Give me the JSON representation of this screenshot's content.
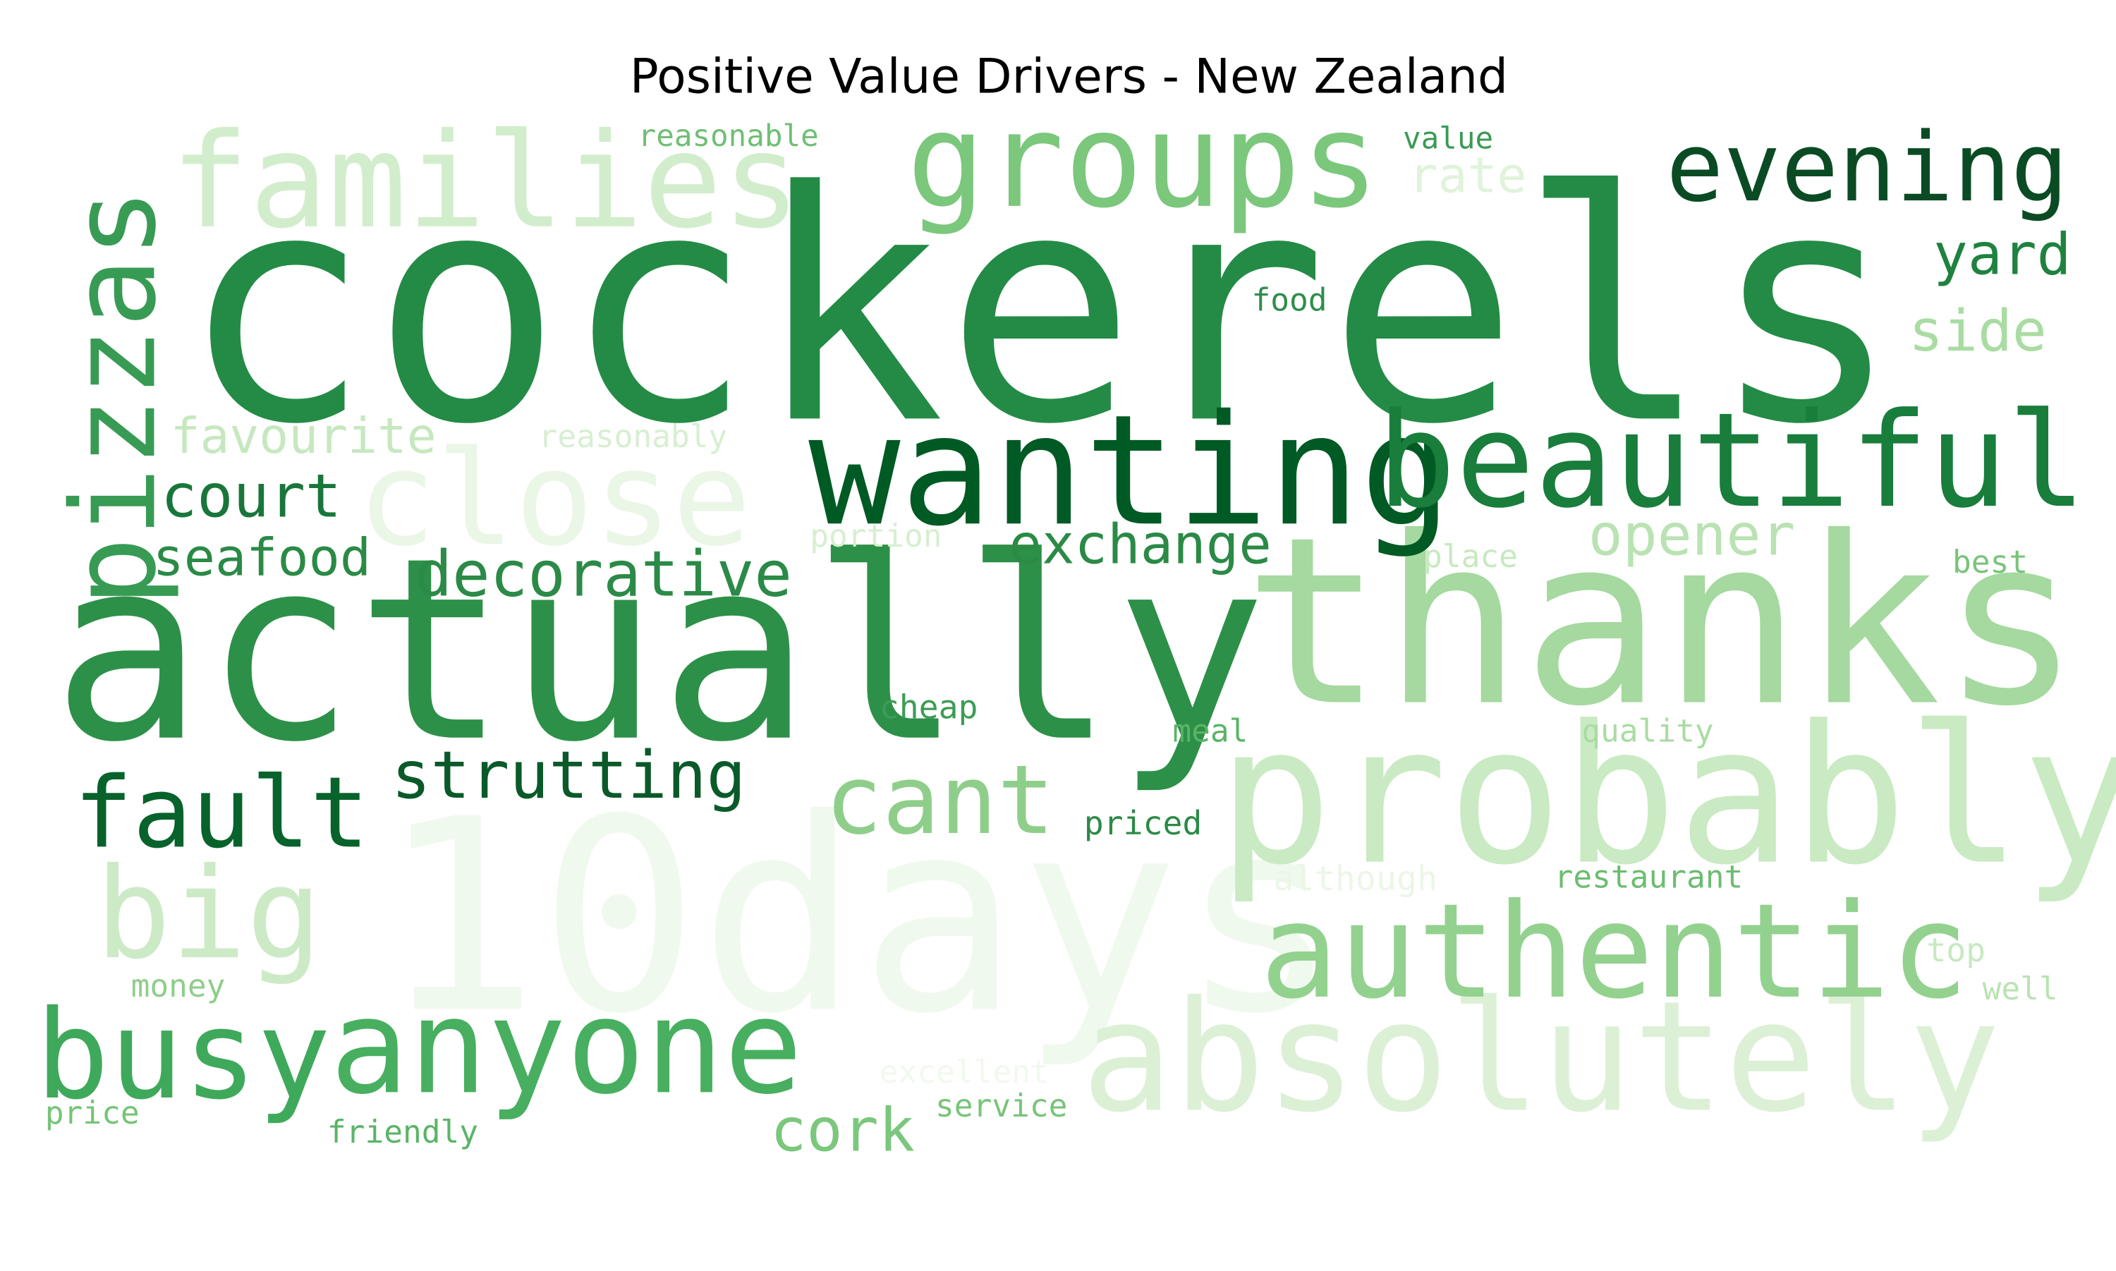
{
  "title": "Positive Value Drivers - New Zealand",
  "colors": {
    "background": "#ffffff",
    "palette": "Greens",
    "shades": [
      "#f1f9ef",
      "#e0f3db",
      "#c7e9c0",
      "#a1d99b",
      "#74c476",
      "#41ab5d",
      "#238b45",
      "#006d2c"
    ]
  },
  "words": [
    {
      "text": "cockerels",
      "color": "#238b45"
    },
    {
      "text": "actually",
      "color": "#2d9048"
    },
    {
      "text": "thanks",
      "color": "#a5d99f"
    },
    {
      "text": "10days",
      "color": "#f0f9ee"
    },
    {
      "text": "probably",
      "color": "#c9eac2"
    },
    {
      "text": "families",
      "color": "#d2edcc"
    },
    {
      "text": "groups",
      "color": "#7bc77c"
    },
    {
      "text": "close",
      "color": "#eaf6e6"
    },
    {
      "text": "wanting",
      "color": "#005a24"
    },
    {
      "text": "beautiful",
      "color": "#197d3c"
    },
    {
      "text": "absolutely",
      "color": "#dcf0d6"
    },
    {
      "text": "authentic",
      "color": "#93d18f"
    },
    {
      "text": "anyone",
      "color": "#47af5f"
    },
    {
      "text": "busy",
      "color": "#3fa95b"
    },
    {
      "text": "pizzas",
      "color": "#389b54"
    },
    {
      "text": "evening",
      "color": "#0b4b24"
    },
    {
      "text": "fault",
      "color": "#07632b"
    },
    {
      "text": "big",
      "color": "#cdeac6"
    },
    {
      "text": "cant",
      "color": "#8fce8a"
    },
    {
      "text": "strutting",
      "color": "#0a5a29"
    },
    {
      "text": "decorative",
      "color": "#2b8a47"
    },
    {
      "text": "exchange",
      "color": "#2a8a46"
    },
    {
      "text": "court",
      "color": "#19763a"
    },
    {
      "text": "seafood",
      "color": "#2a8a46"
    },
    {
      "text": "favourite",
      "color": "#c6e8bf"
    },
    {
      "text": "opener",
      "color": "#b9e3b2"
    },
    {
      "text": "yard",
      "color": "#1f823f"
    },
    {
      "text": "side",
      "color": "#a9dca2"
    },
    {
      "text": "cork",
      "color": "#7bc77c"
    },
    {
      "text": "reasonable",
      "color": "#6fbf74"
    },
    {
      "text": "value",
      "color": "#3a9a54"
    },
    {
      "text": "rate",
      "color": "#e0f3db"
    },
    {
      "text": "food",
      "color": "#2f8e4b"
    },
    {
      "text": "reasonably",
      "color": "#d6efd0"
    },
    {
      "text": "portion",
      "color": "#d6efd0"
    },
    {
      "text": "place",
      "color": "#c7e9c0"
    },
    {
      "text": "best",
      "color": "#78c47a"
    },
    {
      "text": "cheap",
      "color": "#3d9c55"
    },
    {
      "text": "meal",
      "color": "#5ab467"
    },
    {
      "text": "quality",
      "color": "#a9dca2"
    },
    {
      "text": "priced",
      "color": "#2c8a46"
    },
    {
      "text": "although",
      "color": "#ebf6e7"
    },
    {
      "text": "restaurant",
      "color": "#6cbd71"
    },
    {
      "text": "top",
      "color": "#c7e9c0"
    },
    {
      "text": "well",
      "color": "#b9e3b2"
    },
    {
      "text": "money",
      "color": "#8fce8a"
    },
    {
      "text": "excellent",
      "color": "#f1f9ef"
    },
    {
      "text": "service",
      "color": "#78c47a"
    },
    {
      "text": "price",
      "color": "#74c476"
    },
    {
      "text": "friendly",
      "color": "#5ab467"
    }
  ]
}
